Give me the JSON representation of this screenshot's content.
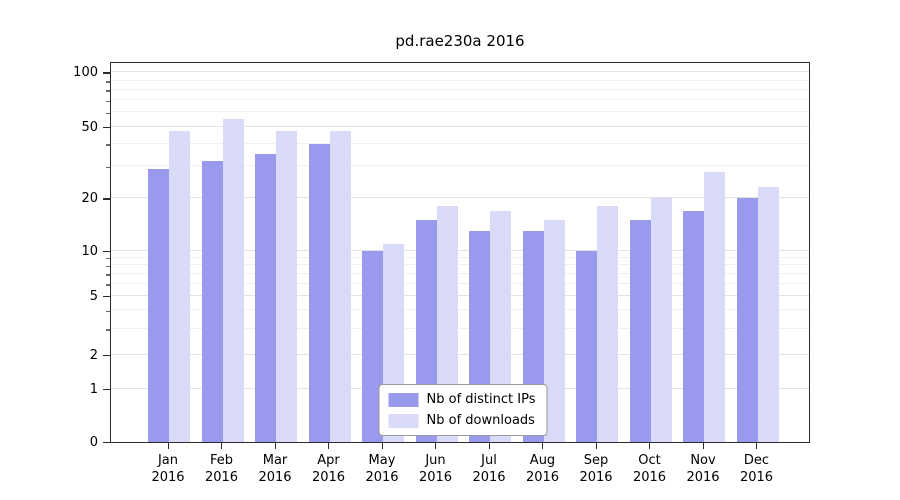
{
  "title": "pd.rae230a 2016",
  "legend": {
    "items": [
      {
        "label": "Nb of distinct IPs",
        "color": "#9999ee"
      },
      {
        "label": "Nb of downloads",
        "color": "#d9d9f8"
      }
    ]
  },
  "chart_data": {
    "type": "bar",
    "title": "pd.rae230a 2016",
    "categories": [
      "Jan 2016",
      "Feb 2016",
      "Mar 2016",
      "Apr 2016",
      "May 2016",
      "Jun 2016",
      "Jul 2016",
      "Aug 2016",
      "Sep 2016",
      "Oct 2016",
      "Nov 2016",
      "Dec 2016"
    ],
    "series": [
      {
        "name": "Nb of distinct IPs",
        "color": "#9999ee",
        "values": [
          29,
          32,
          35,
          40,
          10,
          15,
          13,
          13,
          10,
          15,
          17,
          20
        ]
      },
      {
        "name": "Nb of downloads",
        "color": "#d9d9f8",
        "values": [
          47,
          55,
          47,
          47,
          11,
          18,
          17,
          15,
          18,
          20,
          28,
          23
        ]
      }
    ],
    "yscale": "symlog",
    "yticks": [
      0,
      1,
      2,
      5,
      10,
      20,
      50,
      100
    ],
    "yticks_minor": [
      3,
      4,
      6,
      7,
      8,
      9,
      30,
      40,
      60,
      70,
      80,
      90
    ],
    "ylim": [
      0,
      110
    ],
    "xlabel": "",
    "ylabel": "",
    "grid": true,
    "legend_position": "lower center"
  }
}
